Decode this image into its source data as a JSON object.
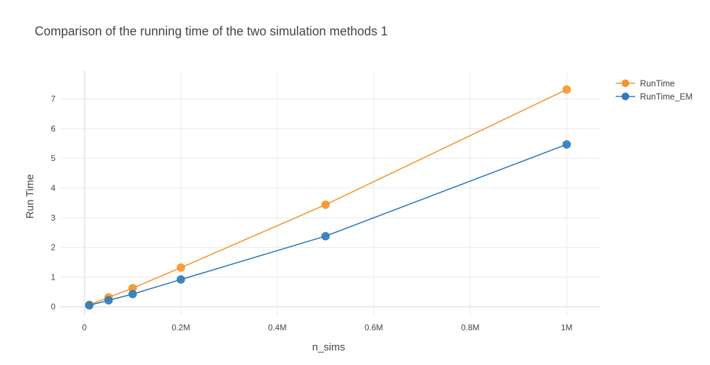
{
  "chart_data": {
    "type": "line",
    "title": "Comparison of the running time of the two simulation methods 1",
    "xlabel": "n_sims",
    "ylabel": "Run Time",
    "xlim": [
      -50000,
      1070000
    ],
    "ylim": [
      -0.3,
      7.95
    ],
    "x_ticks": [
      {
        "value": 0,
        "label": "0"
      },
      {
        "value": 200000,
        "label": "0.2M"
      },
      {
        "value": 400000,
        "label": "0.4M"
      },
      {
        "value": 600000,
        "label": "0.6M"
      },
      {
        "value": 800000,
        "label": "0.8M"
      },
      {
        "value": 1000000,
        "label": "1M"
      }
    ],
    "y_ticks": [
      {
        "value": 0,
        "label": "0"
      },
      {
        "value": 1,
        "label": "1"
      },
      {
        "value": 2,
        "label": "2"
      },
      {
        "value": 3,
        "label": "3"
      },
      {
        "value": 4,
        "label": "4"
      },
      {
        "value": 5,
        "label": "5"
      },
      {
        "value": 6,
        "label": "6"
      },
      {
        "value": 7,
        "label": "7"
      }
    ],
    "x": [
      10000,
      50000,
      100000,
      200000,
      500000,
      1000000
    ],
    "series": [
      {
        "name": "RunTime",
        "color": "#f5962b",
        "values": [
          0.07,
          0.32,
          0.63,
          1.32,
          3.44,
          7.32
        ]
      },
      {
        "name": "RunTime_EM",
        "color": "#2f7bbd",
        "values": [
          0.05,
          0.22,
          0.43,
          0.92,
          2.38,
          5.47
        ]
      }
    ],
    "grid": true,
    "legend_position": "top-right"
  }
}
